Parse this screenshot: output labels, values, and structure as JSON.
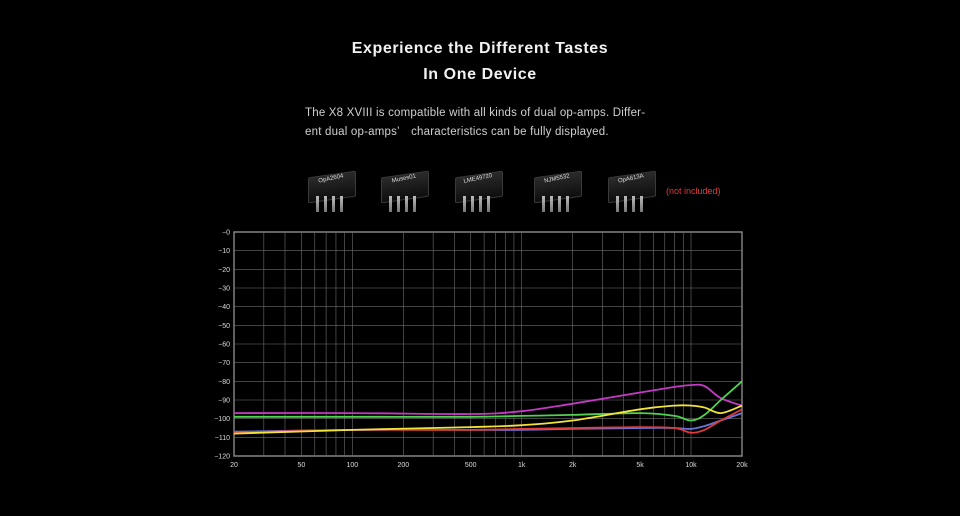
{
  "heading": {
    "line1": "Experience the Different Tastes",
    "line2": "In One Device"
  },
  "description": {
    "line1": "The X8 XVIII is compatible with all kinds of dual op-amps. Differ-",
    "line2": "ent dual op-amps’　characteristics can be fully displayed."
  },
  "opamps": [
    {
      "label": "OpA2604"
    },
    {
      "label": "Muses01"
    },
    {
      "label": "LME49720"
    },
    {
      "label": "NJM5532"
    },
    {
      "label": "OpA613A"
    }
  ],
  "not_included": "(not included)",
  "chart_data": {
    "type": "line",
    "title": "",
    "xlabel": "",
    "ylabel": "",
    "x_scale": "log",
    "xlim": [
      20,
      20000
    ],
    "ylim": [
      -120,
      0
    ],
    "grid": true,
    "x_ticks": [
      {
        "value": 20,
        "label": "20"
      },
      {
        "value": 50,
        "label": "50"
      },
      {
        "value": 100,
        "label": "100"
      },
      {
        "value": 200,
        "label": "200"
      },
      {
        "value": 500,
        "label": "500"
      },
      {
        "value": 1000,
        "label": "1k"
      },
      {
        "value": 2000,
        "label": "2k"
      },
      {
        "value": 5000,
        "label": "5k"
      },
      {
        "value": 10000,
        "label": "10k"
      },
      {
        "value": 20000,
        "label": "20k"
      }
    ],
    "y_ticks": [
      {
        "value": 0,
        "label": "−0"
      },
      {
        "value": -10,
        "label": "−10"
      },
      {
        "value": -20,
        "label": "−20"
      },
      {
        "value": -30,
        "label": "−30"
      },
      {
        "value": -40,
        "label": "−40"
      },
      {
        "value": -50,
        "label": "−50"
      },
      {
        "value": -60,
        "label": "−60"
      },
      {
        "value": -70,
        "label": "−70"
      },
      {
        "value": -80,
        "label": "−80"
      },
      {
        "value": -90,
        "label": "−90"
      },
      {
        "value": -100,
        "label": "−100"
      },
      {
        "value": -110,
        "label": "−110"
      },
      {
        "value": -120,
        "label": "−120"
      }
    ],
    "series": [
      {
        "color": "#c43ac4",
        "x": [
          20,
          100,
          500,
          1000,
          2000,
          5000,
          8000,
          10000,
          12000,
          15000,
          20000
        ],
        "y": [
          -97,
          -97,
          -97.5,
          -96,
          -92,
          -86,
          -83,
          -82,
          -82.5,
          -89,
          -93
        ]
      },
      {
        "color": "#4fd34f",
        "x": [
          20,
          100,
          500,
          1000,
          2000,
          5000,
          8000,
          10000,
          12000,
          15000,
          20000
        ],
        "y": [
          -99,
          -99,
          -99,
          -98.5,
          -98,
          -97,
          -98.5,
          -101,
          -98,
          -90,
          -80
        ]
      },
      {
        "color": "#6a73d8",
        "x": [
          20,
          100,
          500,
          1000,
          2000,
          5000,
          8000,
          10000,
          12000,
          15000,
          20000
        ],
        "y": [
          -107,
          -106,
          -106,
          -106,
          -105.5,
          -105,
          -105,
          -105.5,
          -104,
          -101,
          -97
        ]
      },
      {
        "color": "#e03a3a",
        "x": [
          20,
          100,
          500,
          1000,
          2000,
          5000,
          8000,
          10000,
          12000,
          15000,
          20000
        ],
        "y": [
          -107.5,
          -106,
          -106,
          -105.5,
          -105,
          -104.5,
          -105,
          -107.5,
          -106,
          -101,
          -95
        ]
      },
      {
        "color": "#f2e33c",
        "x": [
          20,
          100,
          500,
          1000,
          2000,
          5000,
          8000,
          10000,
          12000,
          15000,
          20000
        ],
        "y": [
          -108,
          -106,
          -104.5,
          -103.5,
          -101,
          -95,
          -93,
          -93,
          -94,
          -97,
          -93
        ]
      }
    ]
  }
}
